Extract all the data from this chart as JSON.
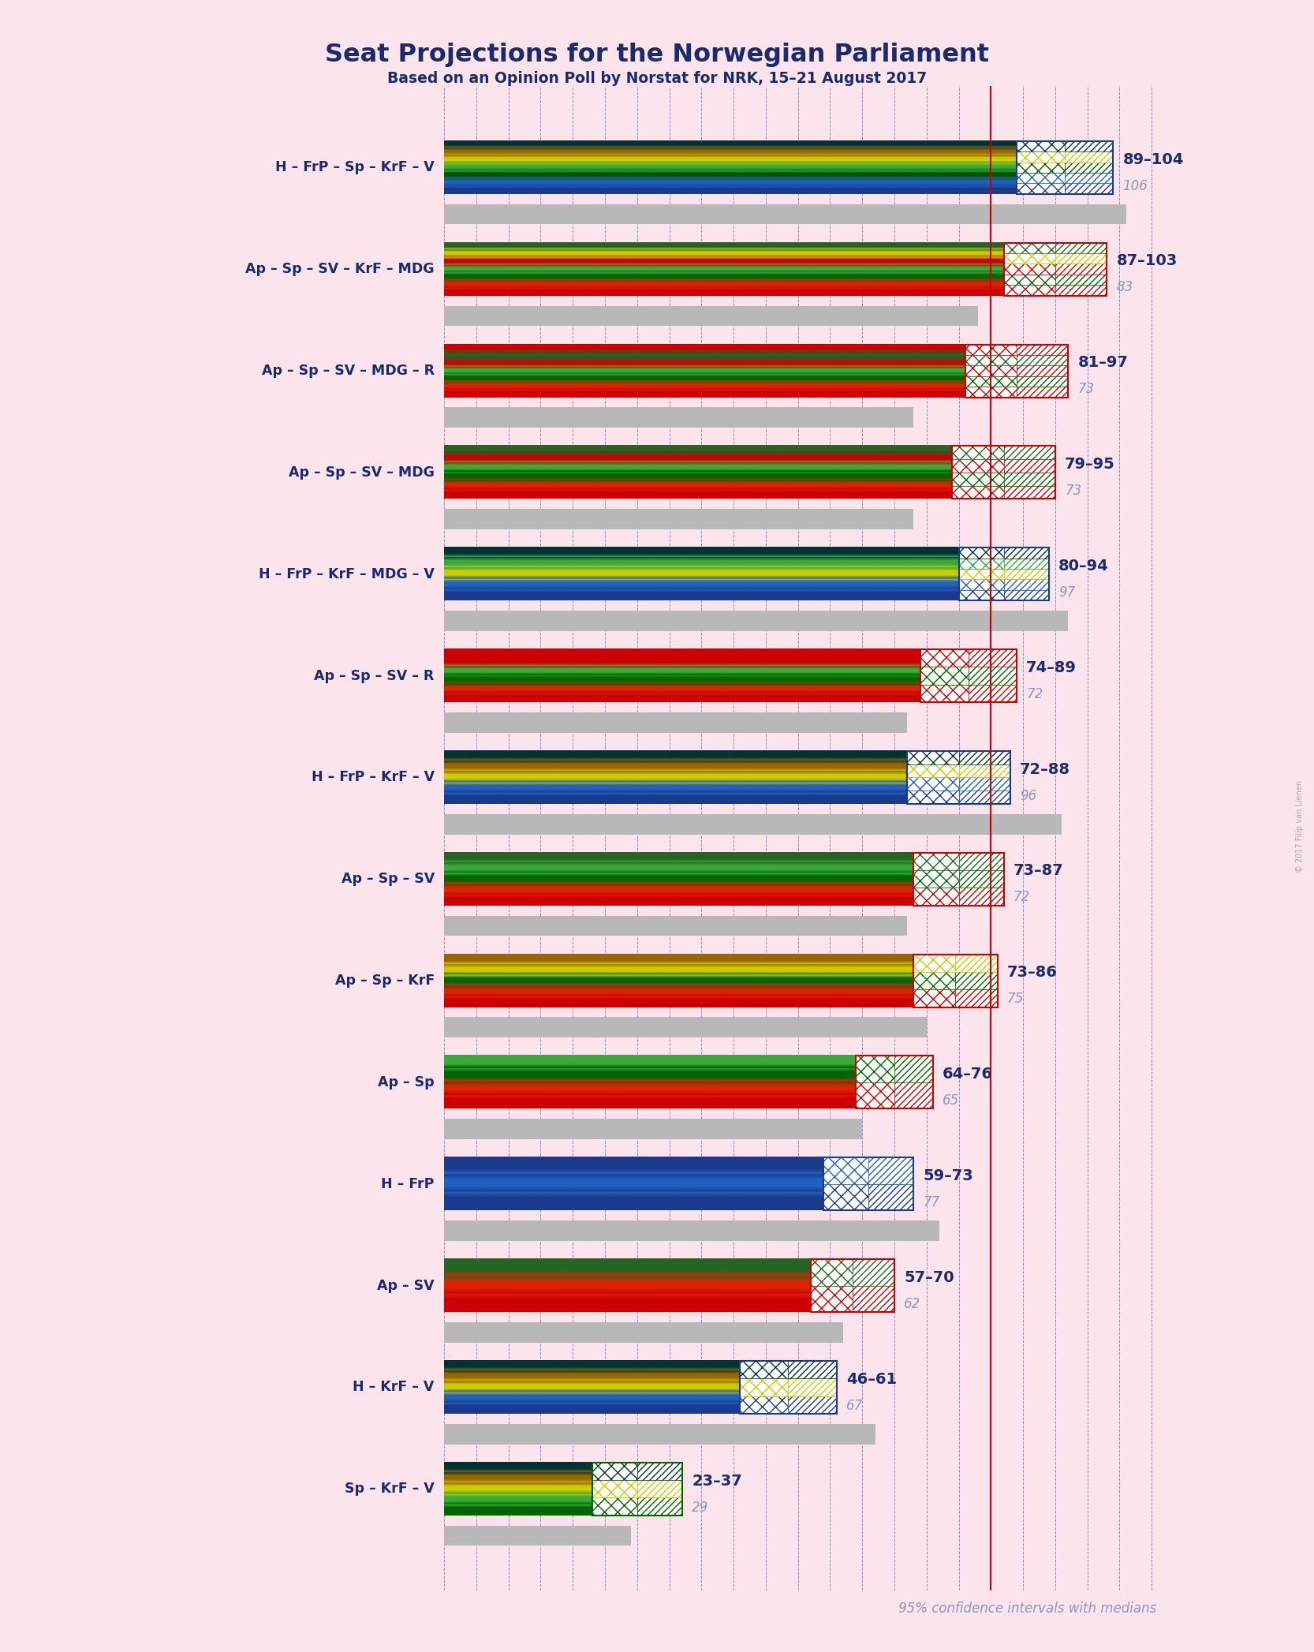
{
  "title": "Seat Projections for the Norwegian Parliament",
  "subtitle": "Based on an Opinion Poll by Norstat for NRK, 15–21 August 2017",
  "footnote": "95% confidence intervals with medians",
  "copyright": "© 2017 Filip van Lienen",
  "background_color": "#fce4ec",
  "majority_line": 85,
  "x_max": 115,
  "coalitions": [
    {
      "name": "H – FrP – Sp – KrF – V",
      "ci_low": 89,
      "ci_high": 104,
      "median": 106,
      "colors": [
        "#1a3a8c",
        "#2060c0",
        "#005500",
        "#3aaa3a",
        "#cccc00",
        "#996600",
        "#003333"
      ],
      "hatch_colors": [
        "#1a3a8c",
        "#2060c0",
        "#005500",
        "#cccc00",
        "#003333"
      ]
    },
    {
      "name": "Ap – Sp – SV – KrF – MDG",
      "ci_low": 87,
      "ci_high": 103,
      "median": 83,
      "colors": [
        "#cc0000",
        "#dd2200",
        "#006600",
        "#3aaa3a",
        "#cc0000",
        "#cccc00",
        "#226622"
      ],
      "hatch_colors": [
        "#cc0000",
        "#006600",
        "#cc0000",
        "#cccc00",
        "#226622"
      ]
    },
    {
      "name": "Ap – Sp – SV – MDG – R",
      "ci_low": 81,
      "ci_high": 97,
      "median": 73,
      "colors": [
        "#cc0000",
        "#dd2200",
        "#006600",
        "#3aaa3a",
        "#cc0000",
        "#226622",
        "#cc0000"
      ],
      "hatch_colors": [
        "#cc0000",
        "#006600",
        "#cc0000",
        "#226622",
        "#cc0000"
      ]
    },
    {
      "name": "Ap – Sp – SV – MDG",
      "ci_low": 79,
      "ci_high": 95,
      "median": 73,
      "colors": [
        "#cc0000",
        "#dd2200",
        "#006600",
        "#3aaa3a",
        "#cc0000",
        "#226622"
      ],
      "hatch_colors": [
        "#cc0000",
        "#006600",
        "#cc0000",
        "#226622"
      ]
    },
    {
      "name": "H – FrP – KrF – MDG – V",
      "ci_low": 80,
      "ci_high": 94,
      "median": 97,
      "colors": [
        "#1a3a8c",
        "#2060c0",
        "#cccc00",
        "#3aaa3a",
        "#003333"
      ],
      "hatch_colors": [
        "#1a3a8c",
        "#2060c0",
        "#cccc00",
        "#3aaa3a",
        "#003333"
      ]
    },
    {
      "name": "Ap – Sp – SV – R",
      "ci_low": 74,
      "ci_high": 89,
      "median": 72,
      "colors": [
        "#cc0000",
        "#dd2200",
        "#006600",
        "#3aaa3a",
        "#cc0000",
        "#cc0000"
      ],
      "hatch_colors": [
        "#cc0000",
        "#006600",
        "#cc0000"
      ]
    },
    {
      "name": "H – FrP – KrF – V",
      "ci_low": 72,
      "ci_high": 88,
      "median": 96,
      "colors": [
        "#1a3a8c",
        "#2060c0",
        "#cccc00",
        "#996600",
        "#003333"
      ],
      "hatch_colors": [
        "#1a3a8c",
        "#2060c0",
        "#cccc00",
        "#003333"
      ]
    },
    {
      "name": "Ap – Sp – SV",
      "ci_low": 73,
      "ci_high": 87,
      "median": 72,
      "colors": [
        "#cc0000",
        "#dd2200",
        "#006600",
        "#3aaa3a",
        "#226622"
      ],
      "hatch_colors": [
        "#cc0000",
        "#006600",
        "#226622"
      ]
    },
    {
      "name": "Ap – Sp – KrF",
      "ci_low": 73,
      "ci_high": 86,
      "median": 75,
      "colors": [
        "#cc0000",
        "#dd2200",
        "#006600",
        "#cccc00",
        "#996600"
      ],
      "hatch_colors": [
        "#cc0000",
        "#006600",
        "#cccc00"
      ]
    },
    {
      "name": "Ap – Sp",
      "ci_low": 64,
      "ci_high": 76,
      "median": 65,
      "colors": [
        "#cc0000",
        "#dd2200",
        "#006600",
        "#3aaa3a"
      ],
      "hatch_colors": [
        "#cc0000",
        "#006600"
      ]
    },
    {
      "name": "H – FrP",
      "ci_low": 59,
      "ci_high": 73,
      "median": 77,
      "colors": [
        "#1a3a8c",
        "#2060c0",
        "#1a3a8c"
      ],
      "hatch_colors": [
        "#1a3a8c",
        "#2060c0"
      ]
    },
    {
      "name": "Ap – SV",
      "ci_low": 57,
      "ci_high": 70,
      "median": 62,
      "colors": [
        "#cc0000",
        "#dd2200",
        "#226622"
      ],
      "hatch_colors": [
        "#cc0000",
        "#226622"
      ]
    },
    {
      "name": "H – KrF – V",
      "ci_low": 46,
      "ci_high": 61,
      "median": 67,
      "colors": [
        "#1a3a8c",
        "#2060c0",
        "#cccc00",
        "#996600",
        "#003333"
      ],
      "hatch_colors": [
        "#1a3a8c",
        "#cccc00",
        "#003333"
      ]
    },
    {
      "name": "Sp – KrF – V",
      "ci_low": 23,
      "ci_high": 37,
      "median": 29,
      "colors": [
        "#006600",
        "#3aaa3a",
        "#cccc00",
        "#996600",
        "#003333"
      ],
      "hatch_colors": [
        "#006600",
        "#cccc00",
        "#003333"
      ]
    }
  ]
}
